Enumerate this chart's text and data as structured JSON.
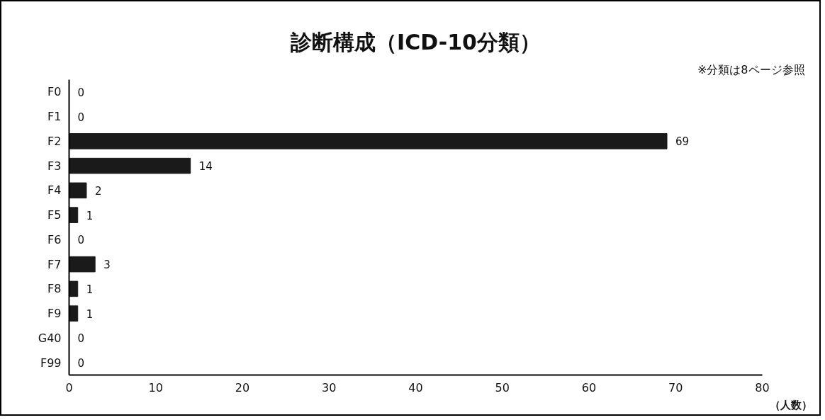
{
  "chart_data": {
    "type": "bar",
    "orientation": "horizontal",
    "title": "診断構成（ICD-10分類）",
    "subtitle": "※分類は8ページ参照",
    "xlabel": "（人数）",
    "categories": [
      "F0",
      "F1",
      "F2",
      "F3",
      "F4",
      "F5",
      "F6",
      "F7",
      "F8",
      "F9",
      "G40",
      "F99"
    ],
    "values": [
      0,
      0,
      69,
      14,
      2,
      1,
      0,
      3,
      1,
      1,
      0,
      0
    ],
    "color": "#1a1a1a",
    "xlim": [
      0,
      80
    ],
    "xticks": [
      0,
      10,
      20,
      30,
      40,
      50,
      60,
      70,
      80
    ],
    "grid": false,
    "data_labels": true
  }
}
